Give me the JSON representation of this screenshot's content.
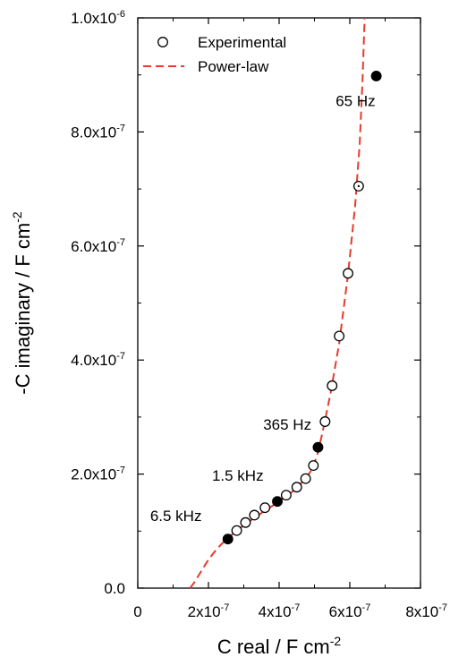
{
  "chart_data": {
    "type": "scatter",
    "xlabel": "C real / F cm",
    "xlabel_sup": "-2",
    "ylabel": "-C imaginary / F cm",
    "ylabel_sup": "-2",
    "xlim": [
      0,
      8e-07
    ],
    "ylim": [
      0,
      1e-06
    ],
    "x_ticks": [
      {
        "value": 0,
        "base": "0",
        "exp": ""
      },
      {
        "value": 2e-07,
        "base": "2x10",
        "exp": "-7"
      },
      {
        "value": 4e-07,
        "base": "4x10",
        "exp": "-7"
      },
      {
        "value": 6e-07,
        "base": "6x10",
        "exp": "-7"
      },
      {
        "value": 8e-07,
        "base": "8x10",
        "exp": "-7"
      }
    ],
    "y_ticks": [
      {
        "value": 0,
        "base": "0.0",
        "exp": ""
      },
      {
        "value": 2e-07,
        "base": "2.0x10",
        "exp": "-7"
      },
      {
        "value": 4e-07,
        "base": "4.0x10",
        "exp": "-7"
      },
      {
        "value": 6e-07,
        "base": "6.0x10",
        "exp": "-7"
      },
      {
        "value": 8e-07,
        "base": "8.0x10",
        "exp": "-7"
      },
      {
        "value": 1e-06,
        "base": "1.0x10",
        "exp": "-6"
      }
    ],
    "grid": false,
    "legend_position": "top-left",
    "series": [
      {
        "name": "Experimental",
        "marker": "open-circle",
        "x": [
          2.55e-07,
          2.8e-07,
          3.05e-07,
          3.3e-07,
          3.6e-07,
          3.95e-07,
          4.2e-07,
          4.5e-07,
          4.75e-07,
          4.97e-07,
          5.1e-07,
          5.3e-07,
          5.5e-07,
          5.7e-07,
          5.95e-07,
          6.25e-07,
          6.75e-07
        ],
        "y": [
          8.6e-08,
          1.01e-07,
          1.15e-07,
          1.28e-07,
          1.41e-07,
          1.52e-07,
          1.63e-07,
          1.77e-07,
          1.92e-07,
          2.15e-07,
          2.47e-07,
          2.92e-07,
          3.55e-07,
          4.42e-07,
          5.52e-07,
          7.05e-07,
          8.98e-07
        ],
        "filled": [
          true,
          false,
          false,
          false,
          false,
          true,
          false,
          false,
          false,
          false,
          true,
          false,
          false,
          false,
          false,
          false,
          true
        ],
        "dotted": [
          false,
          false,
          false,
          false,
          false,
          false,
          false,
          false,
          false,
          false,
          false,
          false,
          false,
          false,
          false,
          true,
          false
        ]
      },
      {
        "name": "Power-law",
        "style": "dashed",
        "x": [
          1.48e-07,
          1.6e-07,
          1.75e-07,
          1.95e-07,
          2.15e-07,
          2.35e-07,
          2.55e-07,
          2.75e-07,
          3e-07,
          3.3e-07,
          3.6e-07,
          3.95e-07,
          4.25e-07,
          4.5e-07,
          4.75e-07,
          4.95e-07,
          5.1e-07,
          5.25e-07,
          5.45e-07,
          5.7e-07,
          5.95e-07,
          6.15e-07,
          6.28e-07,
          6.36e-07,
          6.42e-07
        ],
        "y": [
          0,
          1e-08,
          2.5e-08,
          4.5e-08,
          6.2e-08,
          7.6e-08,
          8.8e-08,
          9.8e-08,
          1.1e-07,
          1.23e-07,
          1.36e-07,
          1.5e-07,
          1.63e-07,
          1.76e-07,
          1.92e-07,
          2.1e-07,
          2.38e-07,
          2.8e-07,
          3.4e-07,
          4.3e-07,
          5.5e-07,
          6.7e-07,
          7.8e-07,
          8.9e-07,
          1e-06
        ]
      }
    ],
    "annotations": [
      {
        "text": "65 Hz",
        "x": 5.6e-07,
        "y": 8.45e-07
      },
      {
        "text": "365 Hz",
        "x": 3.55e-07,
        "y": 2.78e-07
      },
      {
        "text": "1.5 kHz",
        "x": 2.1e-07,
        "y": 1.88e-07
      },
      {
        "text": "6.5 kHz",
        "x": 3.5e-08,
        "y": 1.18e-07
      }
    ],
    "colors": {
      "marker_edge": "#000000",
      "marker_fill_open": "#ffffff",
      "marker_fill_solid": "#000000",
      "fit_line": "#e63b2e",
      "axis": "#000000"
    }
  }
}
